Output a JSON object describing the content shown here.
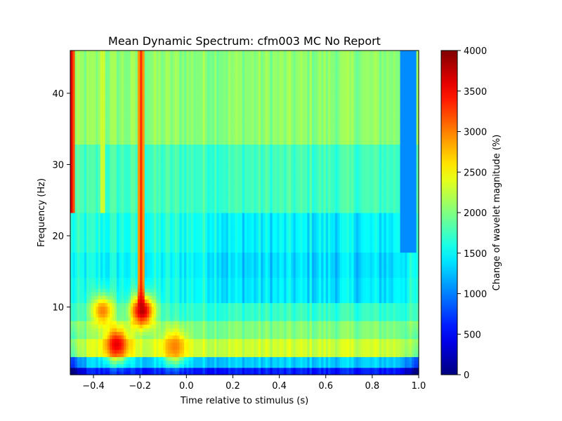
{
  "chart_data": {
    "type": "heatmap",
    "title": "Mean Dynamic Spectrum: cfm003 MC No Report",
    "xlabel": "Time relative to stimulus (s)",
    "ylabel": "Frequency (Hz)",
    "xlim": [
      -0.5,
      1.0
    ],
    "ylim": [
      0.5,
      46
    ],
    "x_ticks": [
      -0.4,
      -0.2,
      0.0,
      0.2,
      0.4,
      0.6,
      0.8,
      1.0
    ],
    "x_tick_labels": [
      "−0.4",
      "−0.2",
      "0.0",
      "0.2",
      "0.4",
      "0.6",
      "0.8",
      "1.0"
    ],
    "y_ticks": [
      10,
      20,
      30,
      40
    ],
    "y_tick_labels": [
      "10",
      "20",
      "30",
      "40"
    ],
    "colormap": "jet",
    "colorbar": {
      "label": "Change of wavelet magnitude (%)",
      "range": [
        0,
        4000
      ],
      "ticks": [
        0,
        500,
        1000,
        1500,
        2000,
        2500,
        3000,
        3500,
        4000
      ],
      "tick_labels": [
        "0",
        "500",
        "1000",
        "1500",
        "2000",
        "2500",
        "3000",
        "3500",
        "4000"
      ]
    },
    "frequency_bands": [
      {
        "range": [
          33,
          46
        ],
        "base": 2050
      },
      {
        "range": [
          23,
          33
        ],
        "base": 1750
      },
      {
        "range": [
          17.5,
          23
        ],
        "base": 1600
      },
      {
        "range": [
          14,
          17.5
        ],
        "base": 1500
      },
      {
        "range": [
          10.5,
          14
        ],
        "base": 1550
      },
      {
        "range": [
          8,
          10.5
        ],
        "base": 1700
      },
      {
        "range": [
          5.5,
          8
        ],
        "base": 2000
      },
      {
        "range": [
          3,
          5.5
        ],
        "base": 2300
      },
      {
        "range": [
          1.5,
          3
        ],
        "base": 1300
      },
      {
        "range": [
          0.5,
          1.5
        ],
        "base": 600
      }
    ],
    "features": [
      {
        "kind": "line",
        "x": -0.495,
        "value": 3600,
        "freq_range": [
          23,
          46
        ]
      },
      {
        "kind": "line",
        "x": -0.195,
        "value": 3300,
        "freq_range": [
          10,
          46
        ]
      },
      {
        "kind": "line",
        "x": -0.36,
        "value": 2500,
        "freq_range": [
          23,
          46
        ]
      },
      {
        "kind": "blob",
        "x": -0.36,
        "freq": 9.5,
        "value": 3000
      },
      {
        "kind": "blob",
        "x": -0.19,
        "freq": 9.5,
        "value": 3800
      },
      {
        "kind": "blob",
        "x": -0.3,
        "freq": 4.8,
        "value": 3600
      },
      {
        "kind": "blob",
        "x": -0.05,
        "freq": 4.5,
        "value": 3000
      },
      {
        "kind": "region",
        "x_range": [
          0.92,
          0.99
        ],
        "freq_range": [
          17.5,
          46
        ],
        "value": 1050
      }
    ]
  }
}
